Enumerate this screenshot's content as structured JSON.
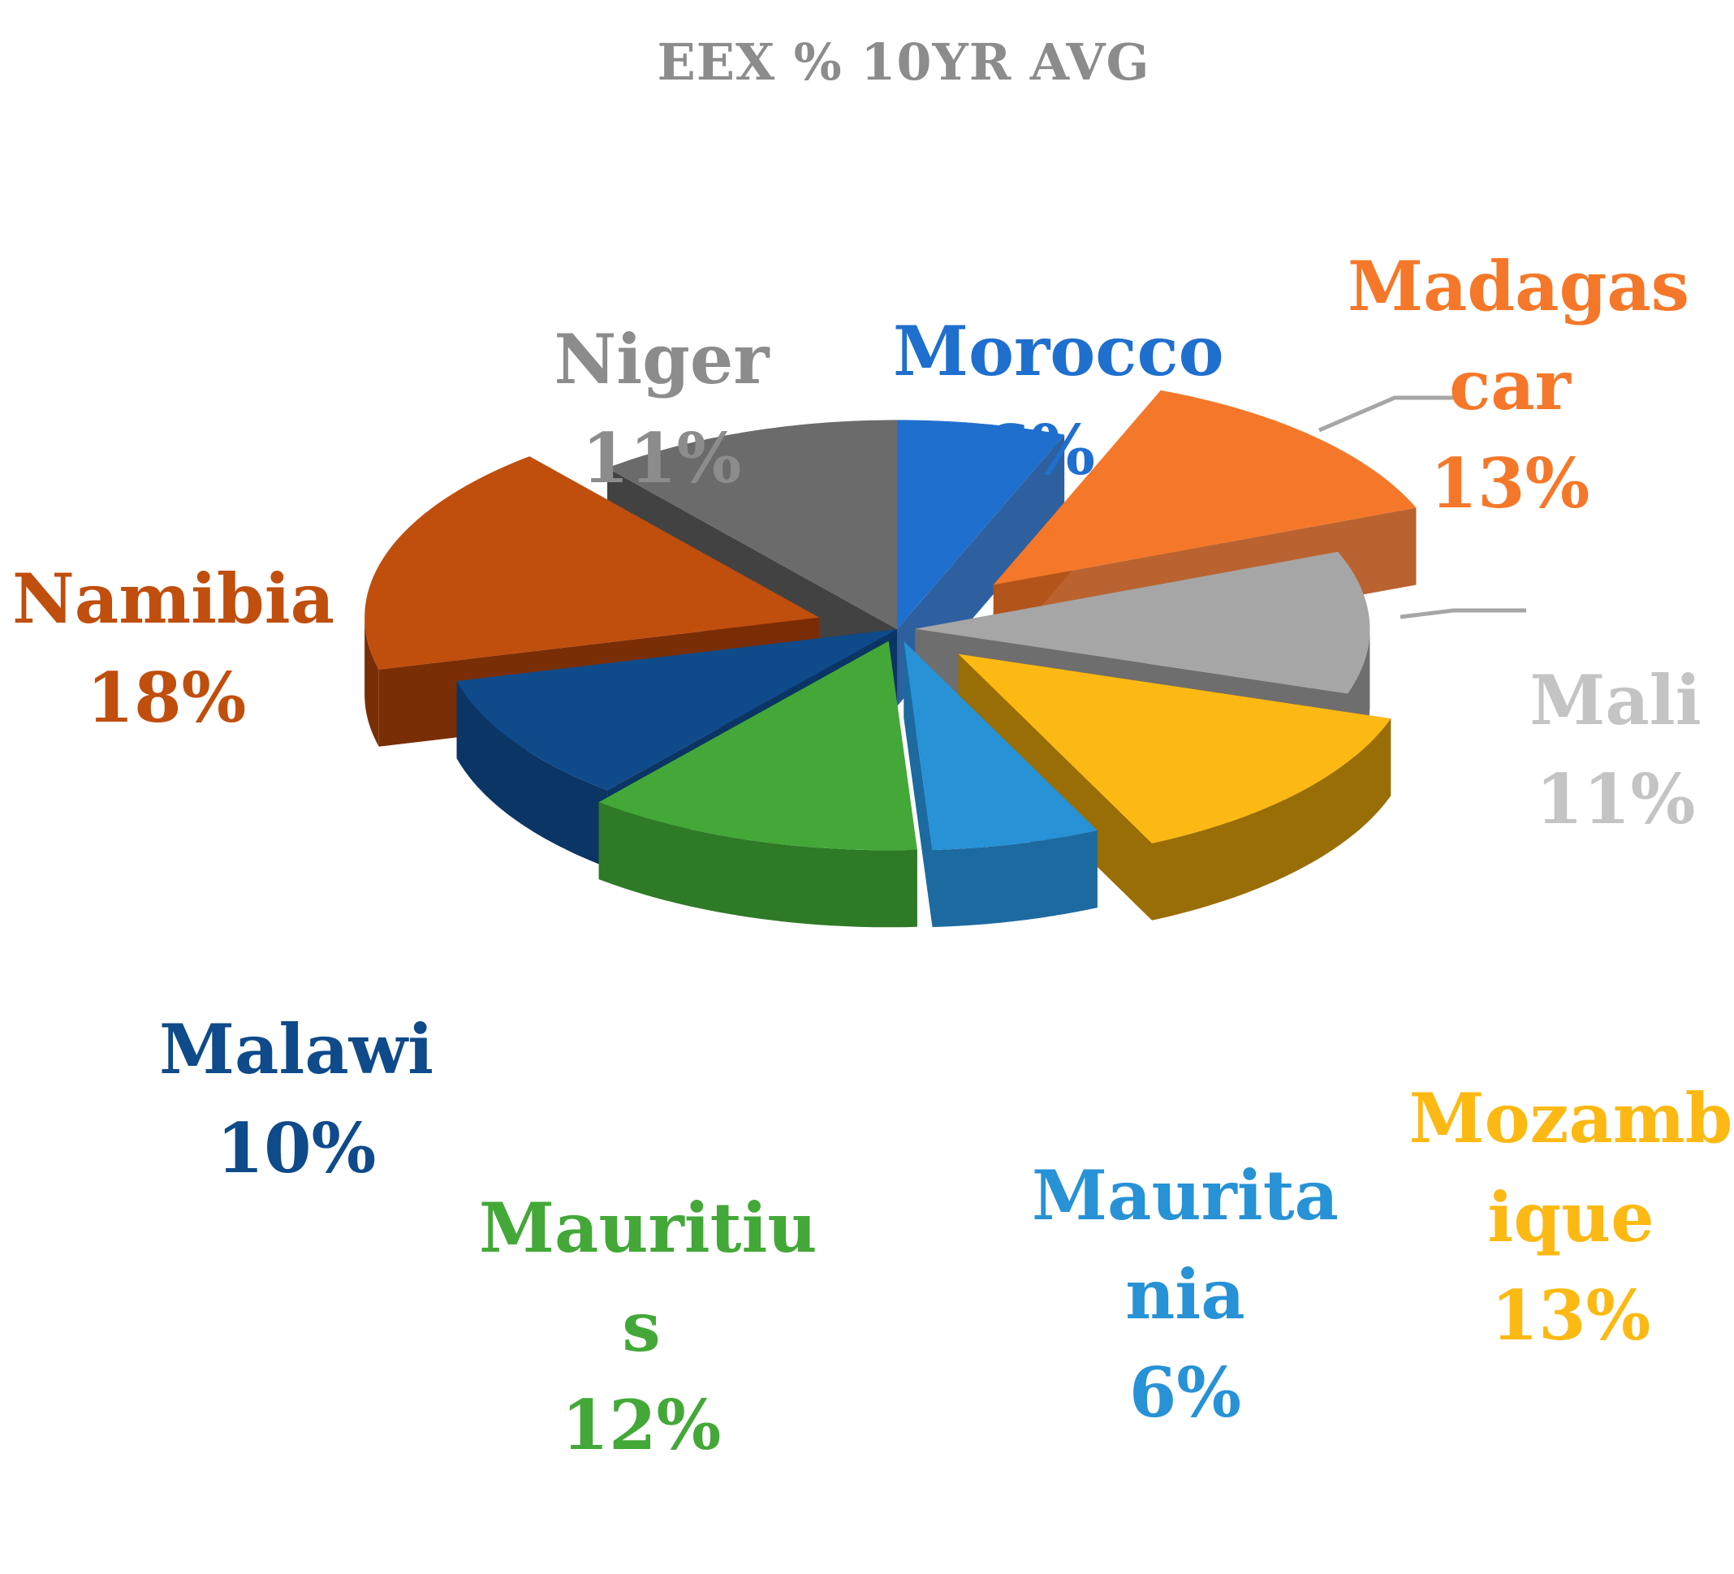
{
  "chart_data": {
    "type": "pie",
    "title": "EEX % 10YR AVG",
    "slices": [
      {
        "name": "Morocco",
        "label": "Morocco",
        "pct_label": "6%",
        "value": 6,
        "color": "#1f6fce",
        "side": "#174f96",
        "explode": 0.0
      },
      {
        "name": "Madagascar",
        "label": "Madagas\ncar",
        "pct_label": "13%",
        "value": 13,
        "color": "#f5782a",
        "side": "#b3521a",
        "explode": 0.3
      },
      {
        "name": "Mali",
        "label": "Mali",
        "pct_label": "11%",
        "value": 11,
        "color": "#a6a6a6",
        "side": "#6e6e6e",
        "explode": 0.04
      },
      {
        "name": "Mozambique",
        "label": "Mozamb\nique",
        "pct_label": "13%",
        "value": 13,
        "color": "#fdb913",
        "side": "#9a6e06",
        "explode": 0.18
      },
      {
        "name": "Mauritania",
        "label": "Maurita\nnia",
        "pct_label": "6%",
        "value": 6,
        "color": "#2792d6",
        "side": "#1d6aa0",
        "explode": 0.06
      },
      {
        "name": "Mauritius",
        "label": "Mauritiu\ns",
        "pct_label": "12%",
        "value": 12,
        "color": "#43a838",
        "side": "#2e7a26",
        "explode": 0.06
      },
      {
        "name": "Malawi",
        "label": "Malawi",
        "pct_label": "10%",
        "value": 10,
        "color": "#0f4a8a",
        "side": "#0b3564",
        "explode": 0.0
      },
      {
        "name": "Namibia",
        "label": "Namibia",
        "pct_label": "18%",
        "value": 18,
        "color": "#c04e0d",
        "side": "#7a2e05",
        "explode": 0.18
      },
      {
        "name": "Niger",
        "label": "Niger",
        "pct_label": "11%",
        "value": 11,
        "color": "#6b6b6b",
        "side": "#2e2e2e",
        "explode": 0.0
      }
    ],
    "label_colors": {
      "Morocco": "#1f6fce",
      "Madagascar": "#f5782a",
      "Mali": "#c4c4c4",
      "Mozambique": "#fdb913",
      "Mauritania": "#2792d6",
      "Mauritius": "#43a838",
      "Malawi": "#0f4a8a",
      "Namibia": "#c04e0d",
      "Niger": "#8c8c8c"
    }
  }
}
